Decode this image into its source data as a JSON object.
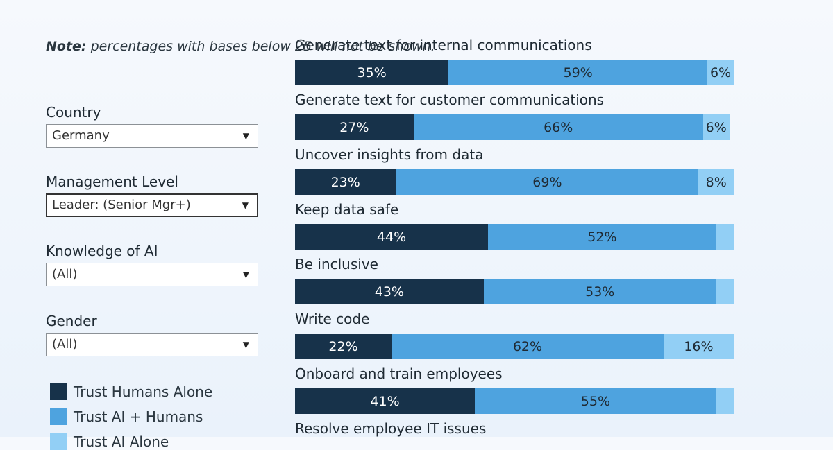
{
  "note": {
    "bold": "Note:",
    "text": " percentages with bases below 25 will not be shown."
  },
  "filters": [
    {
      "label": "Country",
      "value": "Germany"
    },
    {
      "label": "Management Level",
      "value": "Leader: (Senior Mgr+)"
    },
    {
      "label": "Knowledge of AI",
      "value": "(All)"
    },
    {
      "label": "Gender",
      "value": "(All)"
    }
  ],
  "legend": [
    {
      "label": "Trust Humans Alone",
      "color": "#17324a"
    },
    {
      "label": "Trust AI + Humans",
      "color": "#4ea3df"
    },
    {
      "label": "Trust AI Alone",
      "color": "#92cff5"
    }
  ],
  "chart_data": {
    "type": "bar",
    "orientation": "horizontal",
    "stacked": true,
    "categories": [
      "Generate text for internal communications",
      "Generate text for customer communications",
      "Uncover insights from data",
      "Keep data safe",
      "Be inclusive",
      "Write code",
      "Onboard and train employees",
      "Resolve employee IT issues"
    ],
    "series": [
      {
        "name": "Trust Humans Alone",
        "color": "#17324a",
        "label_color": "#ffffff",
        "values": [
          35,
          27,
          23,
          44,
          43,
          22,
          41,
          null
        ]
      },
      {
        "name": "Trust AI + Humans",
        "color": "#4ea3df",
        "label_color": "#1f2a33",
        "values": [
          59,
          66,
          69,
          52,
          53,
          62,
          55,
          null
        ]
      },
      {
        "name": "Trust AI Alone",
        "color": "#92cff5",
        "label_color": "#1f2a33",
        "values": [
          6,
          6,
          8,
          4,
          4,
          16,
          4,
          null
        ]
      }
    ],
    "data_labels": [
      [
        "35%",
        "59%",
        "6%"
      ],
      [
        "27%",
        "66%",
        "6%"
      ],
      [
        "23%",
        "69%",
        "8%"
      ],
      [
        "44%",
        "52%",
        ""
      ],
      [
        "43%",
        "53%",
        ""
      ],
      [
        "22%",
        "62%",
        "16%"
      ],
      [
        "41%",
        "55%",
        ""
      ],
      [
        "",
        "",
        ""
      ]
    ],
    "xlim": [
      0,
      100
    ],
    "unit": "%"
  }
}
